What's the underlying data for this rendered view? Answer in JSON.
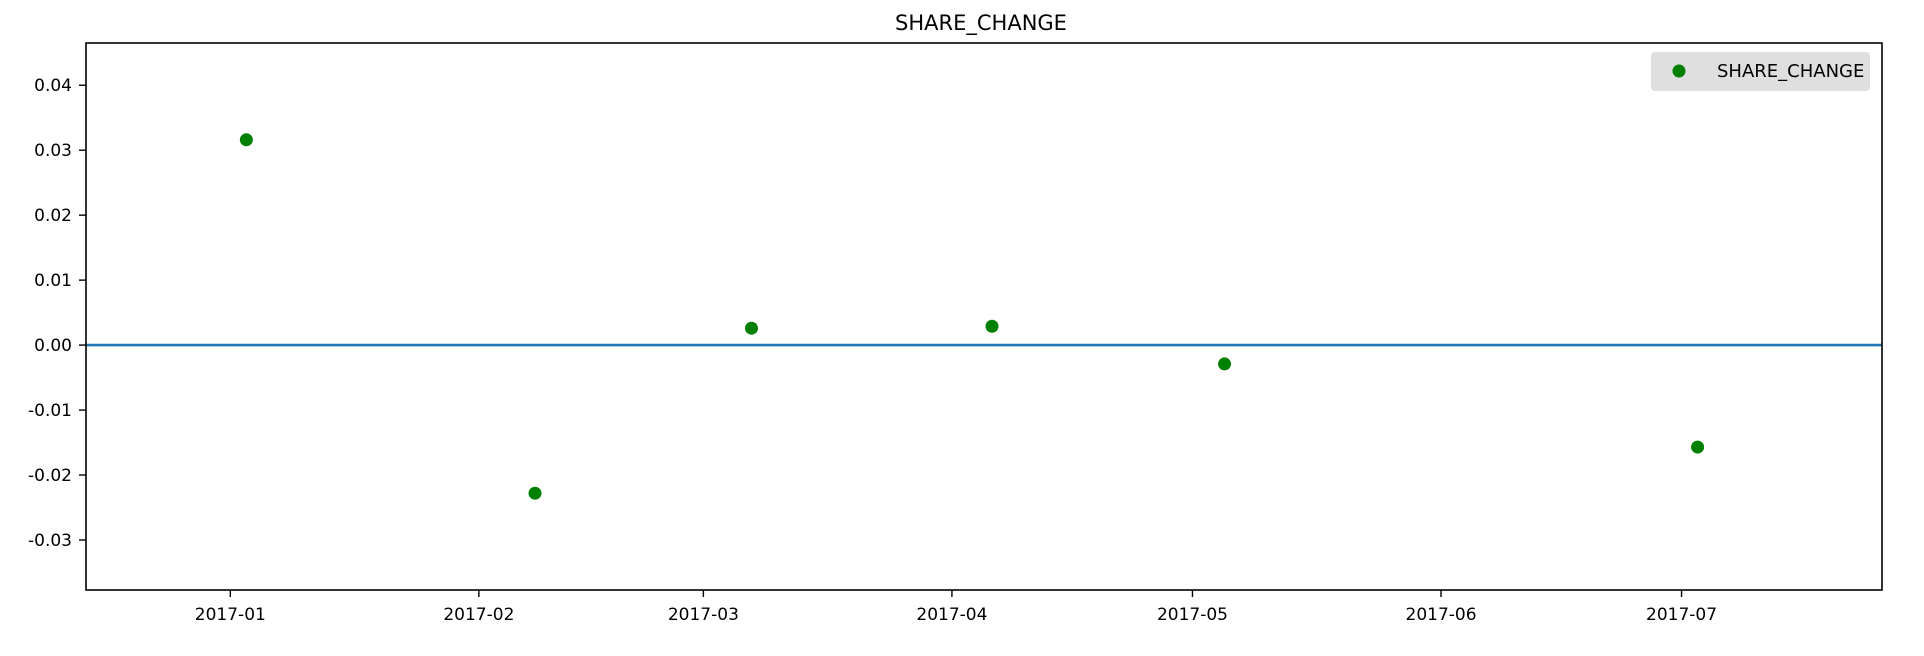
{
  "chart_data": {
    "type": "scatter",
    "title": "SHARE_CHANGE",
    "xlabel": "",
    "ylabel": "",
    "x_tick_labels": [
      "2017-01",
      "2017-02",
      "2017-03",
      "2017-04",
      "2017-05",
      "2017-06",
      "2017-07"
    ],
    "y_tick_labels": [
      "0.04",
      "0.03",
      "0.02",
      "0.01",
      "0.00",
      "-0.01",
      "-0.02",
      "-0.03"
    ],
    "y_ticks": [
      0.04,
      0.03,
      0.02,
      0.01,
      0.0,
      -0.01,
      -0.02,
      -0.03
    ],
    "ylim": [
      -0.0377,
      0.0465
    ],
    "xlim": [
      "2016-12-14",
      "2017-07-26"
    ],
    "series": [
      {
        "name": "SHARE_CHANGE",
        "color": "#008000",
        "marker": "circle",
        "points": [
          {
            "x": "2017-01-03",
            "y": 0.0316
          },
          {
            "x": "2017-02-08",
            "y": -0.0228
          },
          {
            "x": "2017-03-07",
            "y": 0.0026
          },
          {
            "x": "2017-04-06",
            "y": 0.0029
          },
          {
            "x": "2017-05-05",
            "y": -0.0029
          },
          {
            "x": "2017-07-03",
            "y": -0.0157
          }
        ]
      }
    ],
    "reference_line": {
      "y": 0.0,
      "color": "#1f77b4"
    },
    "legend": {
      "position": "top-right",
      "entries": [
        "SHARE_CHANGE"
      ]
    },
    "grid": false
  }
}
